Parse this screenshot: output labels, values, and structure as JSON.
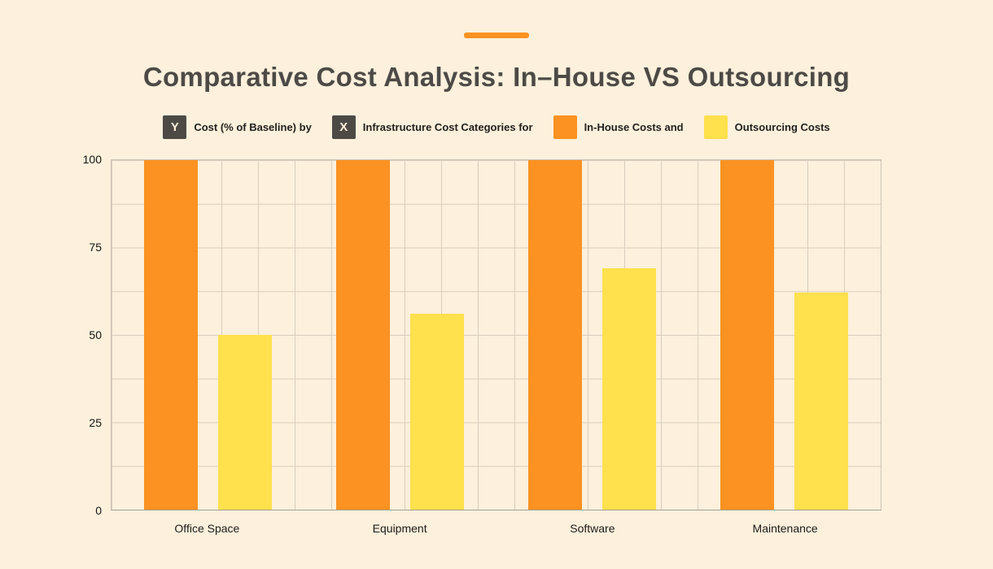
{
  "page": {
    "background_color": "#FDF0DC",
    "accent_color": "#FB9221"
  },
  "header": {
    "title": "Comparative Cost Analysis: In–House VS Outsourcing",
    "title_color": "#4D4A46"
  },
  "legend": {
    "items": [
      {
        "symbol": "Y",
        "label": "Cost (% of Baseline) by",
        "swatch": "#4D4A46"
      },
      {
        "symbol": "X",
        "label": "Infrastructure Cost Categories for",
        "swatch": "#FB9221",
        "swatch_note": ""
      },
      {
        "symbol": "",
        "label": "In-House Costs and",
        "swatch": "#FB9221"
      },
      {
        "symbol": "",
        "label": "Outsourcing Costs",
        "swatch": "#FFE04D"
      }
    ]
  },
  "chart_data": {
    "type": "bar",
    "title": "Comparative Cost Analysis: In–House VS Outsourcing",
    "xlabel": "Infrastructure Cost Categories",
    "ylabel": "Cost (% of Baseline)",
    "categories": [
      "Office Space",
      "Equipment",
      "Software",
      "Maintenance"
    ],
    "series": [
      {
        "name": "In-House Costs",
        "color": "#FB9221",
        "values": [
          100,
          100,
          100,
          100
        ]
      },
      {
        "name": "Outsourcing Costs",
        "color": "#FFE04D",
        "values": [
          50,
          56,
          69,
          62
        ]
      }
    ],
    "ylim": [
      0,
      100
    ],
    "yticks": [
      100,
      75,
      50,
      25,
      0
    ],
    "grid": true,
    "grid_color": "#D8CEBE",
    "legend_position": "top"
  }
}
